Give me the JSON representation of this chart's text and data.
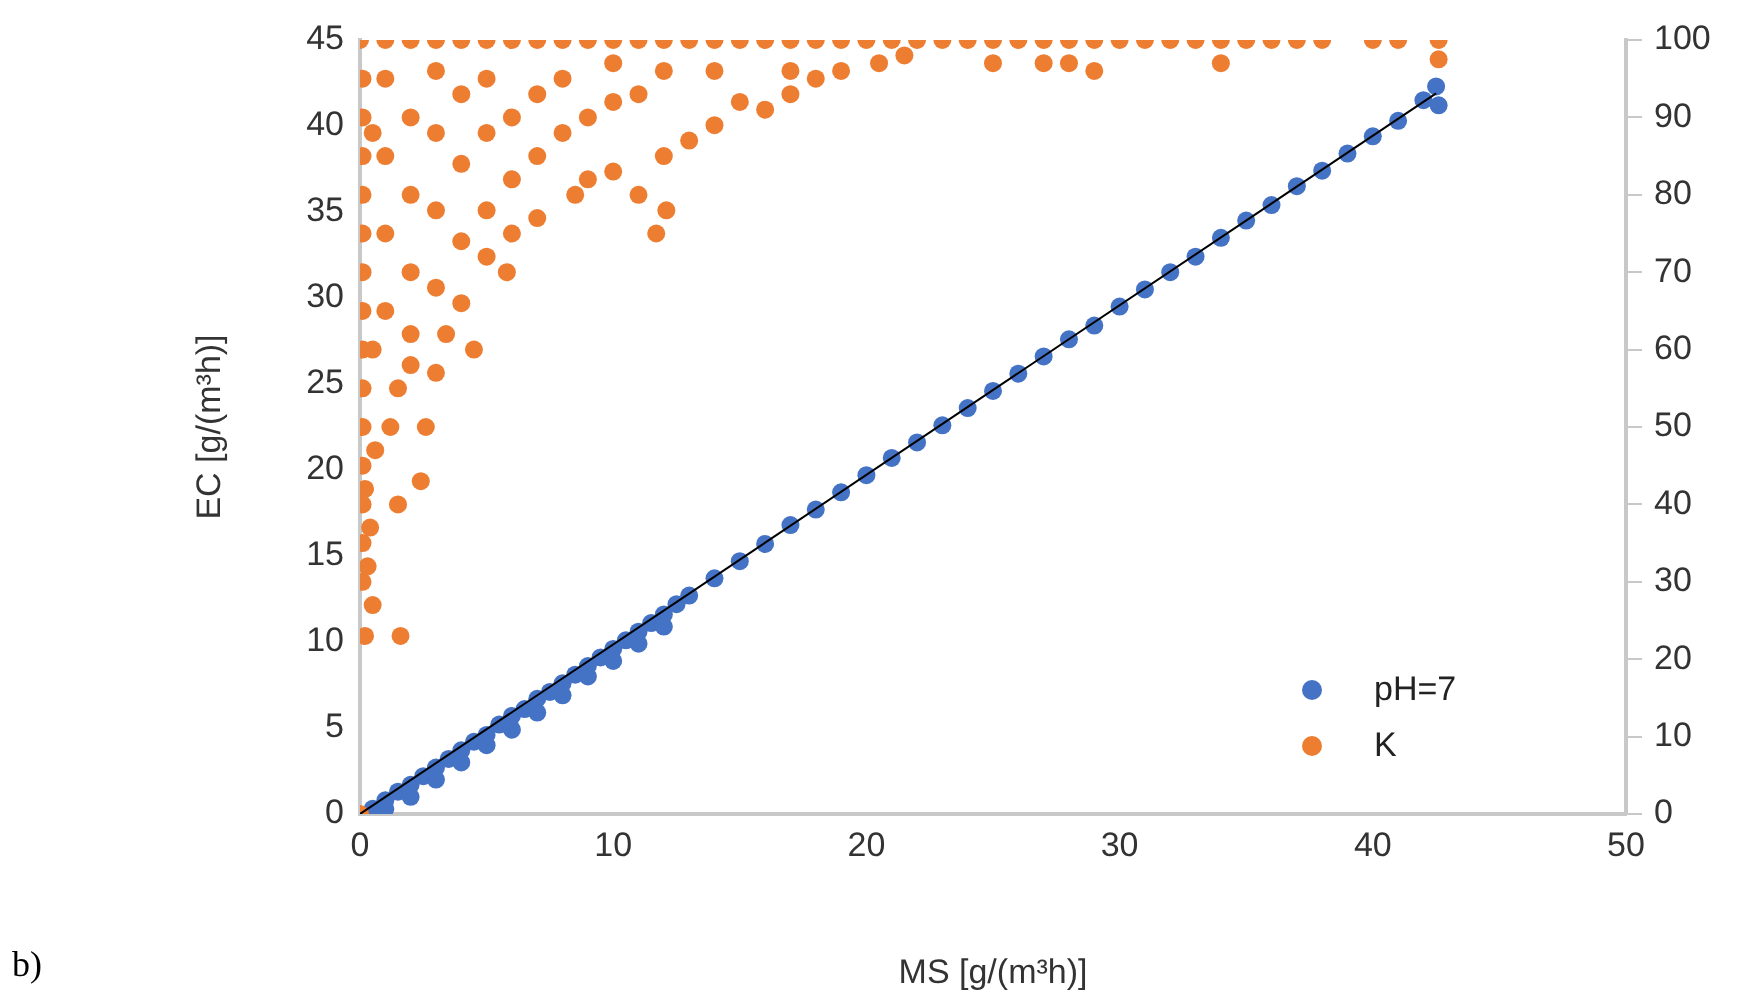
{
  "chart_data": {
    "type": "scatter",
    "xlabel": "MS [g/(m³h)]",
    "ylabel": "EC [g/(m³h)]",
    "annotations": [
      "b)"
    ],
    "xlim": [
      0,
      50
    ],
    "xticks": [
      0,
      10,
      20,
      30,
      40,
      50
    ],
    "ylim": [
      0,
      45
    ],
    "yticks": [
      0,
      5,
      10,
      15,
      20,
      25,
      30,
      35,
      40,
      45
    ],
    "y2lim": [
      0,
      100
    ],
    "y2ticks": [
      0,
      10,
      20,
      30,
      40,
      50,
      60,
      70,
      80,
      90,
      100
    ],
    "grid": false,
    "legend": "bottom right",
    "marker": "circle",
    "series": [
      {
        "name": "pH=7",
        "color": "#4472c4",
        "x": [
          0.5,
          1,
          1.5,
          2,
          2.5,
          3,
          3.5,
          4,
          4.5,
          5,
          5.5,
          6,
          6.5,
          7,
          7.5,
          8,
          8.5,
          9,
          9.5,
          10,
          10.5,
          11,
          11.5,
          12,
          12.5,
          13,
          14,
          15,
          16,
          17,
          18,
          19,
          20,
          21,
          22,
          23,
          24,
          25,
          26,
          27,
          28,
          29,
          30,
          31,
          32,
          33,
          34,
          35,
          36,
          37,
          38,
          39,
          40,
          41,
          42,
          42.5,
          42.6,
          2,
          4,
          6,
          8,
          10,
          12,
          3,
          5,
          7,
          9,
          11,
          1
        ],
        "values": [
          0.3,
          0.8,
          1.3,
          1.7,
          2.2,
          2.7,
          3.2,
          3.7,
          4.2,
          4.6,
          5.2,
          5.7,
          6.1,
          6.7,
          7.1,
          7.6,
          8.1,
          8.6,
          9.1,
          9.6,
          10.1,
          10.6,
          11.1,
          11.6,
          12.2,
          12.7,
          13.7,
          14.7,
          15.7,
          16.8,
          17.7,
          18.7,
          19.7,
          20.7,
          21.6,
          22.6,
          23.6,
          24.6,
          25.6,
          26.6,
          27.6,
          28.4,
          29.5,
          30.5,
          31.5,
          32.4,
          33.5,
          34.5,
          35.4,
          36.5,
          37.4,
          38.4,
          39.4,
          40.3,
          41.5,
          42.3,
          41.2,
          1.0,
          3.0,
          4.9,
          6.9,
          8.9,
          10.9,
          2.0,
          4.0,
          5.9,
          8.0,
          9.9,
          0.3
        ]
      },
      {
        "name": "K",
        "color": "#ed7d31",
        "axis": "y2",
        "x": [
          0,
          0,
          1,
          2,
          3,
          4,
          5,
          6,
          7,
          8,
          9,
          10,
          11,
          12,
          13,
          14,
          15,
          16,
          17,
          18,
          19,
          20,
          21,
          22,
          23,
          24,
          25,
          26,
          27,
          28,
          29,
          30,
          31,
          32,
          33,
          34,
          35,
          36,
          37,
          38,
          40,
          41,
          42.6,
          20.5,
          21.5,
          25,
          27,
          28,
          29,
          34,
          42.6,
          17,
          19,
          0.1,
          0.1,
          0.1,
          0.1,
          0.1,
          0.1,
          0.1,
          0.1,
          0.1,
          0.1,
          0.1,
          0.1,
          0.1,
          0.1,
          0.2,
          1.6,
          0.3,
          0.4,
          0.2,
          0.6,
          1.2,
          2.6,
          2.4,
          1.5,
          2,
          3,
          4.5,
          3.4,
          4,
          5.8,
          5,
          6,
          7,
          8.5,
          9,
          10,
          11.7,
          12.1,
          11,
          12,
          13,
          14,
          16,
          15,
          17,
          18,
          1,
          1,
          1,
          1,
          2,
          2,
          2,
          3,
          3,
          3,
          3,
          4,
          4,
          4,
          5,
          5,
          5,
          6,
          6,
          7,
          7,
          8,
          8,
          9,
          10,
          10,
          11,
          12,
          14,
          0.5,
          0.5,
          0.5,
          1.5,
          2
        ],
        "values": [
          0,
          100,
          100,
          100,
          100,
          100,
          100,
          100,
          100,
          100,
          100,
          100,
          100,
          100,
          100,
          100,
          100,
          100,
          100,
          100,
          100,
          100,
          100,
          100,
          100,
          100,
          100,
          100,
          100,
          100,
          100,
          100,
          100,
          100,
          100,
          100,
          100,
          100,
          100,
          100,
          100,
          100,
          100,
          97,
          98,
          97,
          97,
          97,
          96,
          97,
          97.5,
          96,
          96,
          30,
          35,
          40,
          45,
          50,
          55,
          60,
          65,
          70,
          75,
          80,
          85,
          90,
          95,
          23,
          23,
          32,
          37,
          42,
          47,
          50,
          50,
          43,
          55,
          58,
          57,
          60,
          62,
          66,
          70,
          72,
          75,
          77,
          80,
          82,
          83,
          75,
          78,
          80,
          85,
          87,
          89,
          91,
          92,
          93,
          95,
          65,
          75,
          85,
          95,
          70,
          80,
          90,
          68,
          78,
          88,
          96,
          74,
          84,
          93,
          78,
          88,
          95,
          82,
          90,
          85,
          93,
          88,
          95,
          90,
          92,
          97,
          93,
          96,
          96,
          27,
          60,
          88,
          40,
          62
        ]
      },
      {
        "type": "line",
        "marker": "none",
        "color": "#000000",
        "x": [
          0,
          42.5
        ],
        "values": [
          0,
          41.9
        ]
      }
    ]
  }
}
